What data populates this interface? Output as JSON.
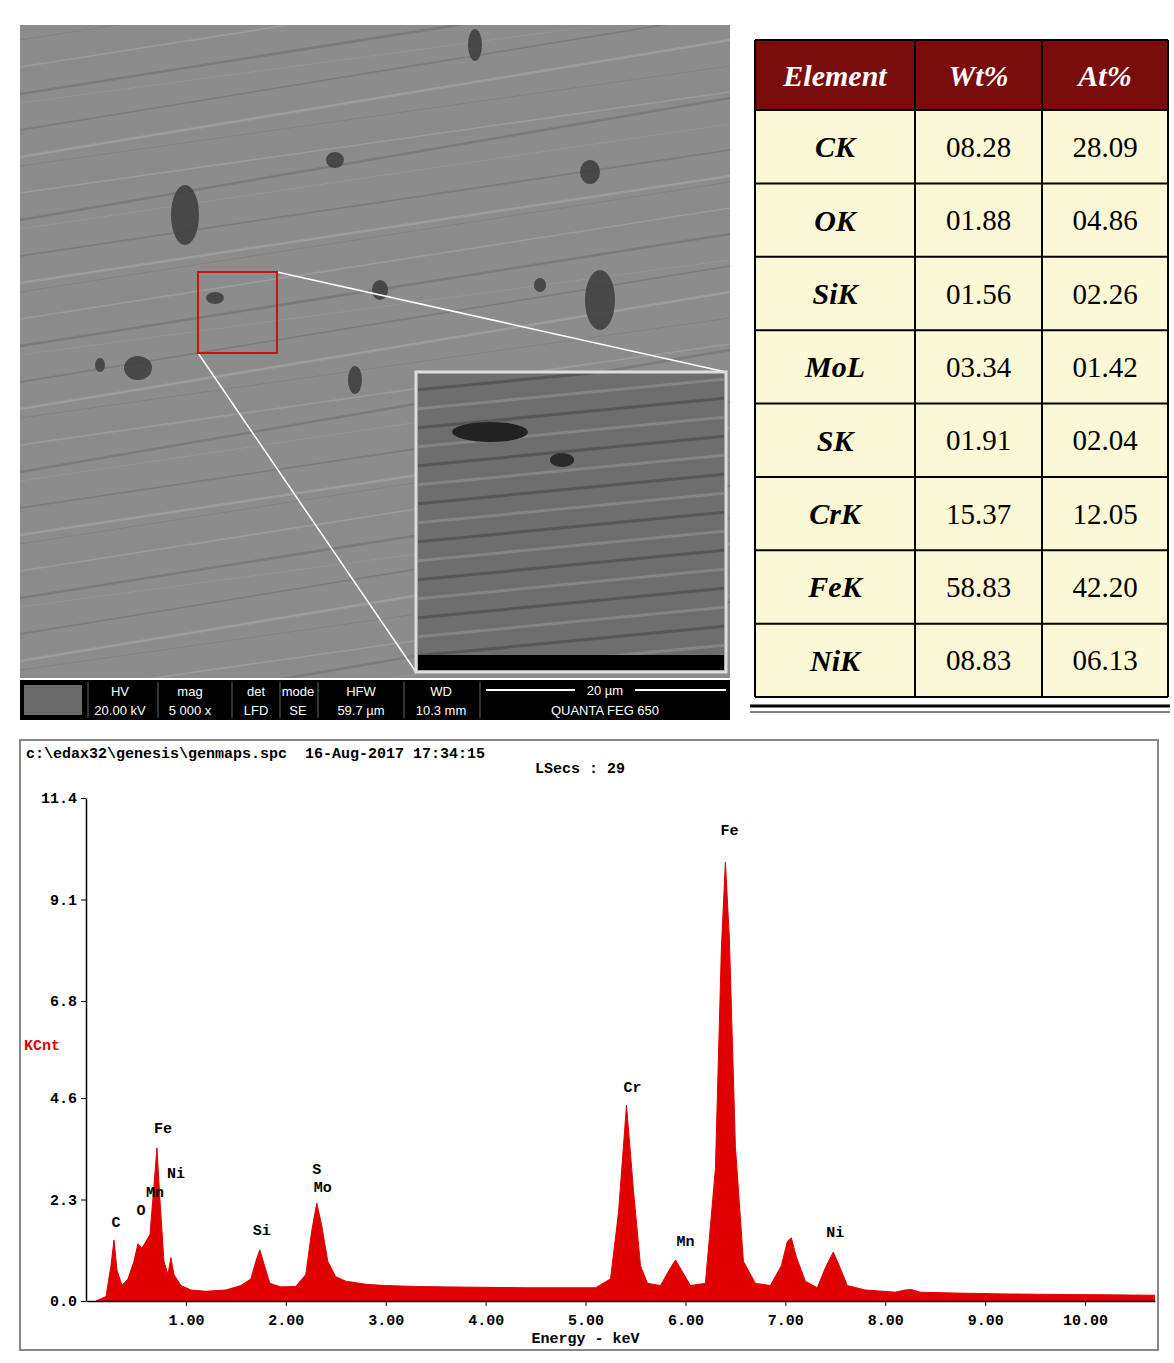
{
  "sem_image": {
    "info_bar": {
      "headers": [
        "HV",
        "mag",
        "det",
        "mode",
        "HFW",
        "WD"
      ],
      "values": [
        "20.00 kV",
        "5 000 x",
        "LFD",
        "SE",
        "59.7 µm",
        "10.3 mm"
      ]
    },
    "scale_bar": "20 µm",
    "instrument": "QUANTA FEG 650"
  },
  "table": {
    "columns": [
      "Element",
      "Wt%",
      "At%"
    ],
    "rows": [
      [
        "CK",
        "08.28",
        "28.09"
      ],
      [
        "OK",
        "01.88",
        "04.86"
      ],
      [
        "SiK",
        "01.56",
        "02.26"
      ],
      [
        "MoL",
        "03.34",
        "01.42"
      ],
      [
        "SK",
        "01.91",
        "02.04"
      ],
      [
        "CrK",
        "15.37",
        "12.05"
      ],
      [
        "FeK",
        "58.83",
        "42.20"
      ],
      [
        "NiK",
        "08.83",
        "06.13"
      ]
    ]
  },
  "chart_data": {
    "type": "area",
    "title": "c:\\edax32\\genesis\\genmaps.spc  16-Aug-2017 17:34:15",
    "subtitle": "LSecs : 29",
    "x_label": "Energy - keV",
    "y_label": "KCnt",
    "x": [
      0.1,
      0.2,
      0.25,
      0.28,
      0.31,
      0.36,
      0.42,
      0.48,
      0.52,
      0.56,
      0.6,
      0.64,
      0.68,
      0.71,
      0.74,
      0.78,
      0.82,
      0.85,
      0.88,
      0.95,
      1.05,
      1.2,
      1.4,
      1.55,
      1.65,
      1.7,
      1.74,
      1.78,
      1.84,
      1.95,
      2.1,
      2.2,
      2.26,
      2.31,
      2.36,
      2.42,
      2.5,
      2.6,
      2.8,
      3.0,
      3.3,
      3.6,
      4.0,
      4.4,
      4.8,
      5.1,
      5.25,
      5.33,
      5.41,
      5.48,
      5.55,
      5.62,
      5.75,
      5.85,
      5.9,
      5.96,
      6.05,
      6.2,
      6.3,
      6.36,
      6.4,
      6.44,
      6.5,
      6.58,
      6.7,
      6.85,
      6.96,
      7.02,
      7.06,
      7.11,
      7.2,
      7.32,
      7.4,
      7.48,
      7.54,
      7.62,
      7.8,
      8.1,
      8.2,
      8.26,
      8.35,
      8.7,
      9.2,
      9.7,
      10.2,
      10.7
    ],
    "values": [
      0.0,
      0.1,
      0.8,
      1.38,
      0.7,
      0.35,
      0.5,
      0.9,
      1.3,
      1.2,
      1.35,
      1.5,
      2.6,
      3.47,
      2.3,
      0.9,
      0.6,
      0.98,
      0.6,
      0.35,
      0.25,
      0.22,
      0.25,
      0.35,
      0.5,
      0.9,
      1.16,
      0.85,
      0.4,
      0.32,
      0.33,
      0.6,
      1.6,
      2.22,
      1.7,
      0.9,
      0.55,
      0.45,
      0.38,
      0.35,
      0.33,
      0.32,
      0.31,
      0.3,
      0.3,
      0.3,
      0.5,
      2.0,
      4.44,
      2.5,
      0.8,
      0.4,
      0.35,
      0.75,
      0.93,
      0.7,
      0.35,
      0.4,
      3.0,
      8.0,
      9.95,
      8.2,
      3.5,
      0.9,
      0.4,
      0.35,
      0.8,
      1.35,
      1.43,
      1.0,
      0.45,
      0.3,
      0.75,
      1.11,
      0.8,
      0.35,
      0.25,
      0.2,
      0.25,
      0.26,
      0.2,
      0.18,
      0.16,
      0.15,
      0.14,
      0.13
    ],
    "color": "#e00000",
    "xlim": [
      0,
      10.7
    ],
    "ylim": [
      0,
      11.4
    ],
    "xticks": [
      {
        "value": 1,
        "label": "1.00"
      },
      {
        "value": 2,
        "label": "2.00"
      },
      {
        "value": 3,
        "label": "3.00"
      },
      {
        "value": 4,
        "label": "4.00"
      },
      {
        "value": 5,
        "label": "5.00"
      },
      {
        "value": 6,
        "label": "6.00"
      },
      {
        "value": 7,
        "label": "7.00"
      },
      {
        "value": 8,
        "label": "8.00"
      },
      {
        "value": 9,
        "label": "9.00"
      },
      {
        "value": 10,
        "label": "10.00"
      }
    ],
    "yticks": [
      {
        "value": 0,
        "label": "0.0"
      },
      2.3,
      4.6,
      6.8,
      9.1,
      11.4
    ],
    "grid": false,
    "annotations": [
      {
        "text": "C",
        "x": 0.3,
        "y": 1.79
      },
      {
        "text": "O",
        "x": 0.55,
        "y": 2.06
      },
      {
        "text": "Mn",
        "x": 0.69,
        "y": 2.47
      },
      {
        "text": "Ni",
        "x": 0.9,
        "y": 2.9
      },
      {
        "text": "Fe",
        "x": 0.77,
        "y": 3.92
      },
      {
        "text": "Si",
        "x": 1.76,
        "y": 1.61
      },
      {
        "text": "S",
        "x": 2.31,
        "y": 3.0
      },
      {
        "text": "Mo",
        "x": 2.37,
        "y": 2.6
      },
      {
        "text": "Cr",
        "x": 5.47,
        "y": 4.85
      },
      {
        "text": "Mn",
        "x": 6.0,
        "y": 1.36
      },
      {
        "text": "Fe",
        "x": 6.44,
        "y": 10.68
      },
      {
        "text": "Ni",
        "x": 7.5,
        "y": 1.56
      }
    ]
  }
}
